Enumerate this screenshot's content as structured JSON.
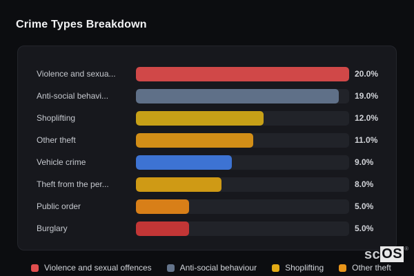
{
  "header": {
    "title": "Crime Types Breakdown"
  },
  "chart_data": {
    "type": "bar",
    "orientation": "horizontal",
    "title": "Crime Types Breakdown",
    "xlim": [
      0,
      20
    ],
    "grid": false,
    "legend_position": "bottom",
    "value_format": "percent",
    "categories": [
      "Violence and sexua...",
      "Anti-social behavi...",
      "Shoplifting",
      "Other theft",
      "Vehicle crime",
      "Theft from the per...",
      "Public order",
      "Burglary"
    ],
    "values": [
      20.0,
      19.0,
      12.0,
      11.0,
      9.0,
      8.0,
      5.0,
      5.0
    ],
    "value_labels": [
      "20.0%",
      "19.0%",
      "12.0%",
      "11.0%",
      "9.0%",
      "8.0%",
      "5.0%",
      "5.0%"
    ],
    "bar_colors": [
      "#d04848",
      "#5f7088",
      "#c7a017",
      "#d28e17",
      "#3d73d3",
      "#cf9a15",
      "#d87f18",
      "#c23636"
    ]
  },
  "legend": {
    "items": [
      {
        "label": "Violence and sexual offences",
        "color": "#e14e4e"
      },
      {
        "label": "Anti-social behaviour",
        "color": "#64748b"
      },
      {
        "label": "Shoplifting",
        "color": "#e3ab15"
      },
      {
        "label": "Other theft",
        "color": "#e8951a"
      }
    ]
  },
  "watermark": {
    "prefix": "sc",
    "suffix": "OS",
    "registered": "®"
  },
  "colors": {
    "page_bg": "#0c0d10",
    "card_bg": "#17181d",
    "card_border": "#24262c",
    "track_bg": "#212329",
    "title_text": "#f2f3f5",
    "label_text": "#c6c9cf",
    "value_text": "#d2d4d9",
    "legend_text": "#d3d6db"
  }
}
